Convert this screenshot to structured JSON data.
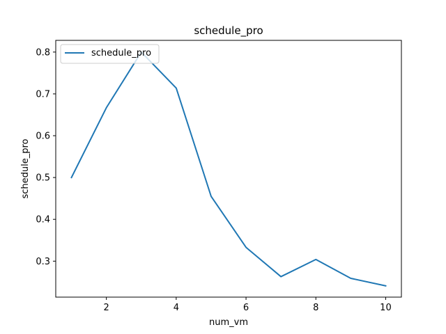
{
  "chart_data": {
    "type": "line",
    "title": "schedule_pro",
    "xlabel": "num_vm",
    "ylabel": "schedule_pro",
    "xlim": [
      0.55,
      10.45
    ],
    "ylim": [
      0.214,
      0.828
    ],
    "xticks": [
      2,
      4,
      6,
      8,
      10
    ],
    "yticks": [
      0.3,
      0.4,
      0.5,
      0.6,
      0.7,
      0.8
    ],
    "grid": false,
    "legend_position": "upper-left",
    "series": [
      {
        "name": "schedule_pro",
        "color": "#1f77b4",
        "x": [
          1,
          2,
          3,
          4,
          5,
          6,
          7,
          8,
          9,
          10
        ],
        "y": [
          0.5,
          0.667,
          0.8,
          0.714,
          0.455,
          0.333,
          0.263,
          0.304,
          0.259,
          0.241
        ]
      }
    ]
  }
}
